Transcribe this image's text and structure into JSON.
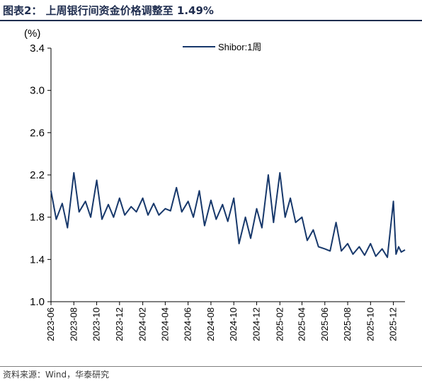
{
  "title": "图表2：  上周银行间资金价格调整至 1.49%",
  "source": "资料来源：Wind，华泰研究",
  "colors": {
    "title": "#1f2d4f",
    "series": "#17386b",
    "axis": "#000000"
  },
  "chart_data": {
    "type": "line",
    "title": "",
    "ylabel": "(%)",
    "xlabel": "",
    "ylim": [
      1.0,
      3.4
    ],
    "yticks": [
      "1.0",
      "1.4",
      "1.8",
      "2.2",
      "2.6",
      "3.0",
      "3.4"
    ],
    "xticks": [
      "2023-06",
      "2023-08",
      "2023-10",
      "2023-12",
      "2024-02",
      "2024-04",
      "2024-06",
      "2024-08",
      "2024-10",
      "2024-12",
      "2025-02",
      "2025-04",
      "2025-06",
      "2025-08",
      "2025-10",
      "2025-12"
    ],
    "grid": false,
    "legend": "top-center",
    "series": [
      {
        "name": "Shibor:1周",
        "x": [
          "2023-06-01",
          "2023-06-15",
          "2023-07-01",
          "2023-07-15",
          "2023-08-01",
          "2023-08-15",
          "2023-09-01",
          "2023-09-15",
          "2023-10-01",
          "2023-10-15",
          "2023-11-01",
          "2023-11-15",
          "2023-12-01",
          "2023-12-15",
          "2024-01-01",
          "2024-01-15",
          "2024-02-01",
          "2024-02-15",
          "2024-03-01",
          "2024-03-15",
          "2024-04-01",
          "2024-04-15",
          "2024-05-01",
          "2024-05-15",
          "2024-06-01",
          "2024-06-15",
          "2024-07-01",
          "2024-07-15",
          "2024-08-01",
          "2024-08-15",
          "2024-09-01",
          "2024-09-15",
          "2024-10-01",
          "2024-10-15",
          "2024-11-01",
          "2024-11-15",
          "2024-12-01",
          "2024-12-15",
          "2025-01-01",
          "2025-01-15",
          "2025-02-01",
          "2025-02-15",
          "2025-03-01",
          "2025-03-15",
          "2025-04-01",
          "2025-04-15",
          "2025-05-01",
          "2025-05-15",
          "2025-06-01",
          "2025-06-15",
          "2025-07-01",
          "2025-07-15",
          "2025-08-01",
          "2025-08-15",
          "2025-09-01",
          "2025-09-15",
          "2025-10-01",
          "2025-10-15",
          "2025-11-01",
          "2025-11-15",
          "2025-12-01",
          "2025-12-08",
          "2025-12-15",
          "2025-12-22",
          "2026-01-01"
        ],
        "values": [
          2.05,
          1.78,
          1.93,
          1.7,
          2.22,
          1.85,
          1.95,
          1.8,
          2.15,
          1.78,
          1.92,
          1.8,
          1.98,
          1.82,
          1.9,
          1.85,
          1.98,
          1.82,
          1.93,
          1.82,
          1.88,
          1.86,
          2.08,
          1.85,
          1.95,
          1.8,
          2.05,
          1.72,
          1.96,
          1.78,
          1.92,
          1.76,
          1.98,
          1.55,
          1.8,
          1.6,
          1.88,
          1.7,
          2.2,
          1.75,
          2.22,
          1.8,
          1.98,
          1.75,
          1.8,
          1.58,
          1.68,
          1.52,
          1.5,
          1.48,
          1.75,
          1.48,
          1.55,
          1.45,
          1.52,
          1.44,
          1.55,
          1.43,
          1.5,
          1.42,
          1.95,
          1.45,
          1.52,
          1.47,
          1.49
        ]
      }
    ]
  }
}
